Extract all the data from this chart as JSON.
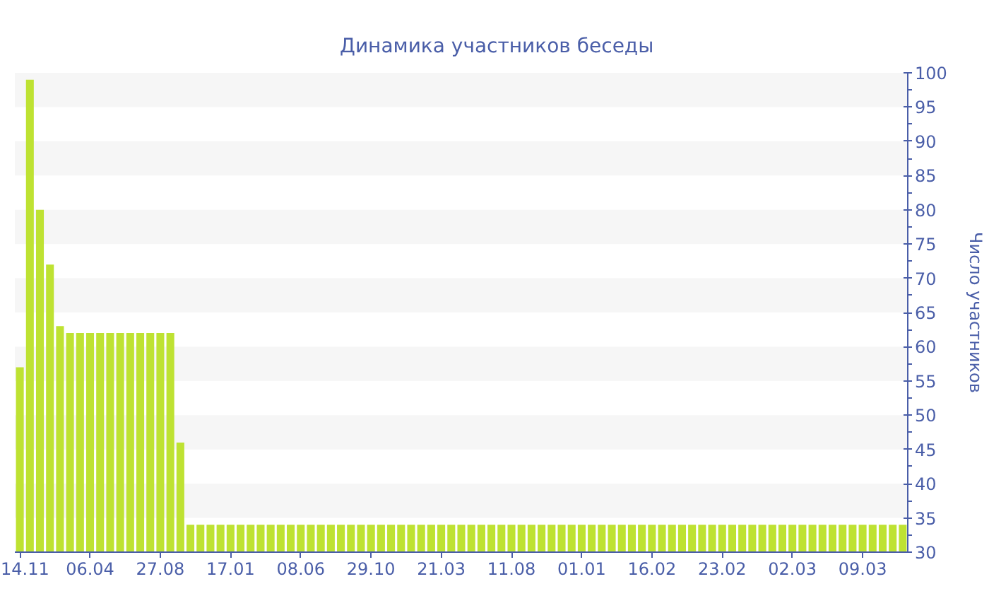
{
  "chart_data": {
    "type": "bar",
    "title": "Динамика участников беседы",
    "ylabel": "Число участников",
    "categories": [
      "14.11",
      null,
      null,
      null,
      null,
      null,
      null,
      "06.04",
      null,
      null,
      null,
      null,
      null,
      null,
      "27.08",
      null,
      null,
      null,
      null,
      null,
      null,
      "17.01",
      null,
      null,
      null,
      null,
      null,
      null,
      "08.06",
      null,
      null,
      null,
      null,
      null,
      null,
      "29.10",
      null,
      null,
      null,
      null,
      null,
      null,
      "21.03",
      null,
      null,
      null,
      null,
      null,
      null,
      "11.08",
      null,
      null,
      null,
      null,
      null,
      null,
      "01.01",
      null,
      null,
      null,
      null,
      null,
      null,
      "16.02",
      null,
      null,
      null,
      null,
      null,
      null,
      "23.02",
      null,
      null,
      null,
      null,
      null,
      null,
      "02.03",
      null,
      null,
      null,
      null,
      null,
      null,
      "09.03",
      null,
      null,
      null,
      null
    ],
    "values": [
      57,
      99,
      80,
      72,
      63,
      62,
      62,
      62,
      62,
      62,
      62,
      62,
      62,
      62,
      62,
      62,
      46,
      34,
      34,
      34,
      34,
      34,
      34,
      34,
      34,
      34,
      34,
      34,
      34,
      34,
      34,
      34,
      34,
      34,
      34,
      34,
      34,
      34,
      34,
      34,
      34,
      34,
      34,
      34,
      34,
      34,
      34,
      34,
      34,
      34,
      34,
      34,
      34,
      34,
      34,
      34,
      34,
      34,
      34,
      34,
      34,
      34,
      34,
      34,
      34,
      34,
      34,
      34,
      34,
      34,
      34,
      34,
      34,
      34,
      34,
      34,
      34,
      34,
      34,
      34,
      34,
      34,
      34,
      34,
      34,
      34,
      34,
      34,
      34
    ],
    "color": "#bee232",
    "ylim": [
      30,
      100
    ],
    "yticks": [
      30,
      35,
      40,
      45,
      50,
      55,
      60,
      65,
      70,
      75,
      80,
      85,
      90,
      95,
      100
    ],
    "bands": [
      {
        "axis": "y",
        "from": 35,
        "to": 40,
        "color": "#f6f6f6"
      },
      {
        "axis": "y",
        "from": 45,
        "to": 50,
        "color": "#f6f6f6"
      },
      {
        "axis": "y",
        "from": 55,
        "to": 60,
        "color": "#f6f6f6"
      },
      {
        "axis": "y",
        "from": 65,
        "to": 70,
        "color": "#f6f6f6"
      },
      {
        "axis": "y",
        "from": 75,
        "to": 80,
        "color": "#f6f6f6"
      },
      {
        "axis": "y",
        "from": 85,
        "to": 90,
        "color": "#f6f6f6"
      },
      {
        "axis": "y",
        "from": 95,
        "to": 100,
        "color": "#f6f6f6"
      }
    ]
  }
}
